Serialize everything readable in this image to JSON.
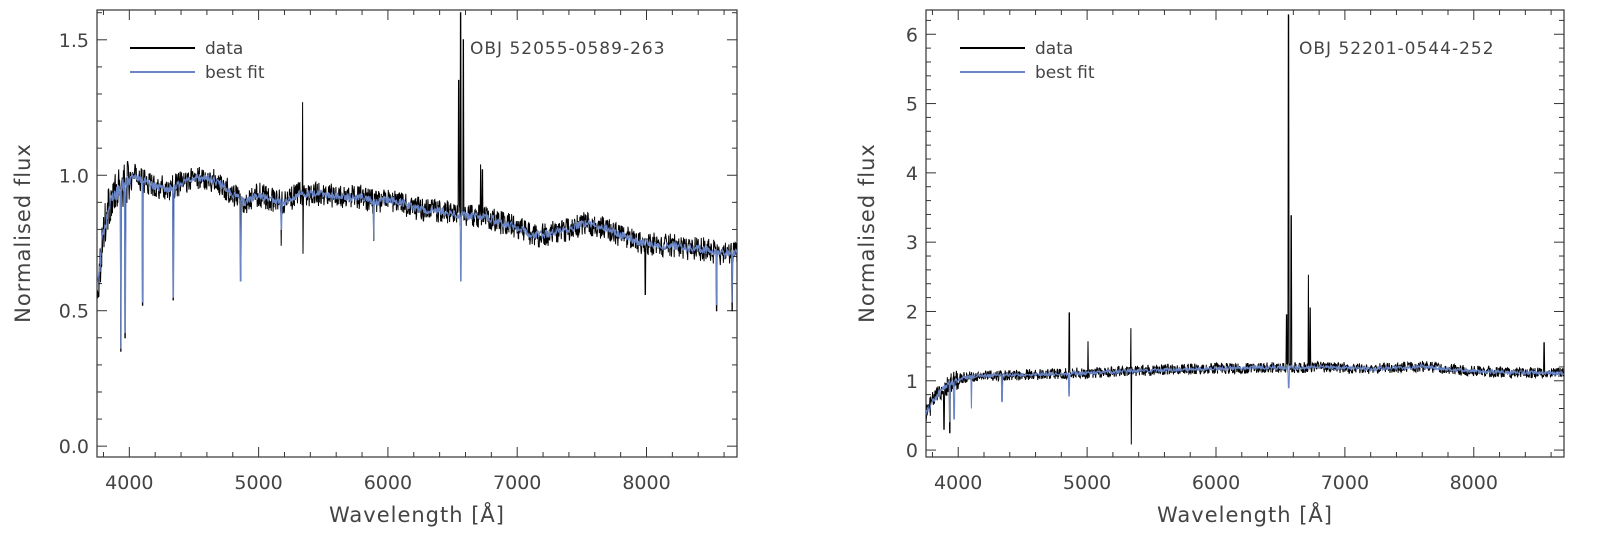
{
  "chart_data": [
    {
      "type": "line",
      "title": "",
      "annotation": "OBJ 52055-0589-263",
      "xlabel": "Wavelength [Å]",
      "ylabel": "Normalised flux",
      "xlim": [
        3750,
        8700
      ],
      "ylim": [
        -0.04,
        1.61
      ],
      "xticks": [
        "4000",
        "5000",
        "6000",
        "7000",
        "8000"
      ],
      "xtick_values": [
        4000,
        5000,
        6000,
        7000,
        8000
      ],
      "yticks": [
        "0.0",
        "0.5",
        "1.0",
        "1.5"
      ],
      "ytick_values": [
        0.0,
        0.5,
        1.0,
        1.5
      ],
      "legend": [
        "data",
        "best fit"
      ],
      "legend_position": "top-left",
      "series": [
        {
          "name": "data",
          "color": "#000000",
          "x": [
            3760,
            3800,
            3850,
            3900,
            3950,
            4000,
            4050,
            4100,
            4150,
            4200,
            4300,
            4400,
            4500,
            4600,
            4700,
            4800,
            4900,
            5000,
            5100,
            5200,
            5300,
            5400,
            5500,
            5600,
            5700,
            5800,
            5900,
            6000,
            6100,
            6200,
            6300,
            6400,
            6500,
            6600,
            6700,
            6800,
            6900,
            7000,
            7100,
            7200,
            7300,
            7400,
            7500,
            7600,
            7700,
            7800,
            7900,
            8000,
            8100,
            8200,
            8300,
            8400,
            8500,
            8600,
            8700
          ],
          "y": [
            0.6,
            0.8,
            0.9,
            0.93,
            0.96,
            0.98,
            1.0,
            0.98,
            0.97,
            0.96,
            0.95,
            0.97,
            0.99,
            0.99,
            0.97,
            0.93,
            0.9,
            0.93,
            0.91,
            0.9,
            0.93,
            0.93,
            0.93,
            0.92,
            0.92,
            0.92,
            0.9,
            0.91,
            0.9,
            0.88,
            0.87,
            0.87,
            0.86,
            0.85,
            0.85,
            0.84,
            0.82,
            0.81,
            0.78,
            0.78,
            0.79,
            0.8,
            0.82,
            0.82,
            0.8,
            0.78,
            0.76,
            0.75,
            0.74,
            0.74,
            0.73,
            0.73,
            0.72,
            0.71,
            0.72
          ],
          "emission_lines": [
            {
              "x": 5340,
              "peak": 1.27
            },
            {
              "x": 6548,
              "peak": 1.35
            },
            {
              "x": 6563,
              "peak": 1.6
            },
            {
              "x": 6584,
              "peak": 1.5
            },
            {
              "x": 6717,
              "peak": 1.04
            },
            {
              "x": 6731,
              "peak": 1.02
            }
          ],
          "absorption_lines": [
            {
              "x": 3934,
              "depth": 0.35
            },
            {
              "x": 3968,
              "depth": 0.4
            },
            {
              "x": 4102,
              "depth": 0.52
            },
            {
              "x": 4340,
              "depth": 0.54
            },
            {
              "x": 4861,
              "depth": 0.61
            },
            {
              "x": 5175,
              "depth": 0.74
            },
            {
              "x": 5342,
              "depth": 0.71
            },
            {
              "x": 5890,
              "depth": 0.76
            },
            {
              "x": 7990,
              "depth": 0.56
            },
            {
              "x": 8542,
              "depth": 0.5
            },
            {
              "x": 8662,
              "depth": 0.5
            }
          ]
        },
        {
          "name": "best fit",
          "color": "#6a86c6",
          "x": [
            3760,
            3800,
            3850,
            3900,
            3950,
            4000,
            4050,
            4100,
            4150,
            4200,
            4300,
            4400,
            4500,
            4600,
            4700,
            4800,
            4900,
            5000,
            5100,
            5200,
            5300,
            5400,
            5500,
            5600,
            5700,
            5800,
            5900,
            6000,
            6100,
            6200,
            6300,
            6400,
            6500,
            6600,
            6700,
            6800,
            6900,
            7000,
            7100,
            7200,
            7300,
            7400,
            7500,
            7600,
            7700,
            7800,
            7900,
            8000,
            8100,
            8200,
            8300,
            8400,
            8500,
            8600,
            8700
          ],
          "y": [
            0.6,
            0.8,
            0.9,
            0.93,
            0.96,
            0.98,
            1.0,
            0.98,
            0.97,
            0.96,
            0.95,
            0.97,
            0.99,
            0.99,
            0.97,
            0.93,
            0.9,
            0.93,
            0.91,
            0.9,
            0.93,
            0.93,
            0.93,
            0.92,
            0.92,
            0.92,
            0.9,
            0.91,
            0.9,
            0.88,
            0.87,
            0.87,
            0.86,
            0.85,
            0.85,
            0.84,
            0.82,
            0.81,
            0.78,
            0.78,
            0.79,
            0.8,
            0.82,
            0.82,
            0.8,
            0.78,
            0.76,
            0.75,
            0.74,
            0.74,
            0.73,
            0.73,
            0.72,
            0.71,
            0.72
          ],
          "absorption_lines": [
            {
              "x": 3934,
              "depth": 0.36
            },
            {
              "x": 3968,
              "depth": 0.42
            },
            {
              "x": 4102,
              "depth": 0.53
            },
            {
              "x": 4340,
              "depth": 0.55
            },
            {
              "x": 4861,
              "depth": 0.61
            },
            {
              "x": 5175,
              "depth": 0.8
            },
            {
              "x": 5890,
              "depth": 0.76
            },
            {
              "x": 6563,
              "depth": 0.61
            },
            {
              "x": 8542,
              "depth": 0.52
            },
            {
              "x": 8662,
              "depth": 0.53
            }
          ]
        }
      ]
    },
    {
      "type": "line",
      "title": "",
      "annotation": "OBJ 52201-0544-252",
      "xlabel": "Wavelength [Å]",
      "ylabel": "Normalised flux",
      "xlim": [
        3750,
        8700
      ],
      "ylim": [
        -0.1,
        6.35
      ],
      "xticks": [
        "4000",
        "5000",
        "6000",
        "7000",
        "8000"
      ],
      "xtick_values": [
        4000,
        5000,
        6000,
        7000,
        8000
      ],
      "yticks": [
        "0",
        "1",
        "2",
        "3",
        "4",
        "5",
        "6"
      ],
      "ytick_values": [
        0,
        1,
        2,
        3,
        4,
        5,
        6
      ],
      "legend": [
        "data",
        "best fit"
      ],
      "legend_position": "top-left",
      "series": [
        {
          "name": "data",
          "color": "#000000",
          "x": [
            3760,
            3800,
            3850,
            3900,
            3950,
            4000,
            4050,
            4100,
            4150,
            4200,
            4300,
            4400,
            4500,
            4600,
            4700,
            4800,
            4900,
            5000,
            5100,
            5200,
            5300,
            5400,
            5500,
            5600,
            5700,
            5800,
            5900,
            6000,
            6100,
            6200,
            6300,
            6400,
            6500,
            6600,
            6700,
            6800,
            6900,
            7000,
            7100,
            7200,
            7300,
            7400,
            7500,
            7600,
            7700,
            7800,
            7900,
            8000,
            8100,
            8200,
            8300,
            8400,
            8500,
            8600,
            8700
          ],
          "y": [
            0.55,
            0.7,
            0.82,
            0.92,
            0.98,
            1.02,
            1.05,
            1.06,
            1.07,
            1.07,
            1.08,
            1.08,
            1.09,
            1.09,
            1.1,
            1.1,
            1.11,
            1.11,
            1.12,
            1.13,
            1.14,
            1.15,
            1.15,
            1.16,
            1.16,
            1.17,
            1.17,
            1.18,
            1.18,
            1.18,
            1.19,
            1.19,
            1.19,
            1.19,
            1.19,
            1.2,
            1.19,
            1.19,
            1.18,
            1.17,
            1.18,
            1.19,
            1.2,
            1.21,
            1.19,
            1.17,
            1.15,
            1.14,
            1.13,
            1.13,
            1.12,
            1.12,
            1.12,
            1.11,
            1.11
          ],
          "emission_lines": [
            {
              "x": 4861,
              "peak": 1.98
            },
            {
              "x": 5007,
              "peak": 1.57
            },
            {
              "x": 5340,
              "peak": 1.76
            },
            {
              "x": 6548,
              "peak": 1.95
            },
            {
              "x": 6563,
              "peak": 6.28
            },
            {
              "x": 6584,
              "peak": 3.38
            },
            {
              "x": 6717,
              "peak": 2.53
            },
            {
              "x": 6731,
              "peak": 2.05
            },
            {
              "x": 8545,
              "peak": 1.55
            }
          ],
          "absorption_lines": [
            {
              "x": 3890,
              "depth": 0.3
            },
            {
              "x": 3934,
              "depth": 0.25
            },
            {
              "x": 5342,
              "depth": 0.08
            },
            {
              "x": 4340,
              "depth": 0.72
            }
          ]
        },
        {
          "name": "best fit",
          "color": "#6a86c6",
          "x": [
            3760,
            3800,
            3850,
            3900,
            3950,
            4000,
            4050,
            4100,
            4150,
            4200,
            4300,
            4400,
            4500,
            4600,
            4700,
            4800,
            4900,
            5000,
            5100,
            5200,
            5300,
            5400,
            5500,
            5600,
            5700,
            5800,
            5900,
            6000,
            6100,
            6200,
            6300,
            6400,
            6500,
            6600,
            6700,
            6800,
            6900,
            7000,
            7100,
            7200,
            7300,
            7400,
            7500,
            7600,
            7700,
            7800,
            7900,
            8000,
            8100,
            8200,
            8300,
            8400,
            8500,
            8600,
            8700
          ],
          "y": [
            0.55,
            0.7,
            0.82,
            0.92,
            0.98,
            1.02,
            1.05,
            1.06,
            1.07,
            1.07,
            1.08,
            1.08,
            1.09,
            1.09,
            1.1,
            1.1,
            1.11,
            1.11,
            1.12,
            1.13,
            1.14,
            1.15,
            1.15,
            1.16,
            1.16,
            1.17,
            1.17,
            1.18,
            1.18,
            1.18,
            1.19,
            1.19,
            1.19,
            1.19,
            1.19,
            1.2,
            1.19,
            1.19,
            1.18,
            1.17,
            1.18,
            1.19,
            1.2,
            1.21,
            1.19,
            1.17,
            1.15,
            1.14,
            1.13,
            1.13,
            1.12,
            1.12,
            1.12,
            1.11,
            1.11
          ],
          "absorption_lines": [
            {
              "x": 3934,
              "depth": 0.4
            },
            {
              "x": 3968,
              "depth": 0.45
            },
            {
              "x": 4102,
              "depth": 0.6
            },
            {
              "x": 4340,
              "depth": 0.7
            },
            {
              "x": 4861,
              "depth": 0.78
            },
            {
              "x": 6563,
              "depth": 0.9
            }
          ]
        }
      ]
    }
  ]
}
